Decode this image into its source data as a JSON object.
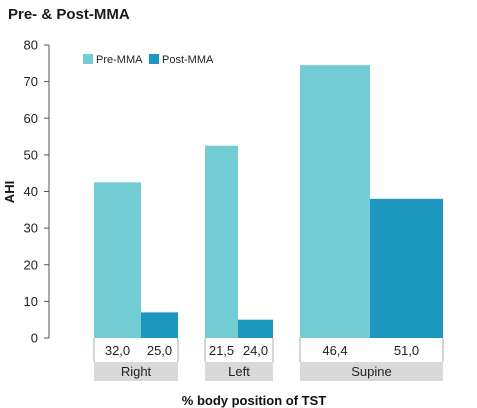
{
  "chart_data": {
    "type": "bar",
    "title": "Pre- & Post-MMA",
    "xlabel": "% body position of TST",
    "ylabel": "AHI",
    "ylim": [
      0,
      80
    ],
    "yticks": [
      0,
      10,
      20,
      30,
      40,
      50,
      60,
      70,
      80
    ],
    "categories": [
      "Right",
      "Left",
      "Supine"
    ],
    "series": [
      {
        "name": "Pre-MMA",
        "color": "#71cdd3",
        "values": [
          42.5,
          52.5,
          74.5
        ],
        "pct_labels": [
          "32,0",
          "21,5",
          "46,4"
        ]
      },
      {
        "name": "Post-MMA",
        "color": "#1d97c0",
        "values": [
          7,
          5,
          38
        ],
        "pct_labels": [
          "25,0",
          "24,0",
          "51,0"
        ]
      }
    ],
    "legend_position": "top-left",
    "grid": false,
    "colors": {
      "group_band": "#d9d9d9",
      "axis": "#555555"
    }
  }
}
